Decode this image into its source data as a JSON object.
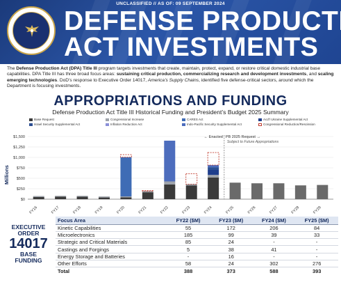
{
  "banner": {
    "classification": "UNCLASSIFIED // AS OF: 09 SEPTEMBER 2024",
    "title_line1": "DEFENSE PRODUCTION",
    "title_line2": "ACT INVESTMENTS",
    "seal_name": "department-of-defense-seal"
  },
  "intro": {
    "p1": "The ",
    "p2": "Defense Production Act (DPA) Title III",
    "p3": " program targets investments that create, maintain, protect, expand, or restore critical domestic industrial base capabilities. DPA Title III has three broad focus areas: ",
    "p4": "sustaining critical production, commercializing research and development investments",
    "p5": ", and ",
    "p6": "scaling emerging technologies",
    "p7": ". DoD’s response to Executive Order 14017, ",
    "p8": "America’s Supply Chains",
    "p9": ", identified five defense-critical sectors, around which the Department is focusing investments."
  },
  "section_title": "APPROPRIATIONS AND FUNDING",
  "colors": {
    "banner": "#1f4592",
    "base": "#3a3a3a",
    "congress": "#9ea3aa",
    "cares": "#3f6cb5",
    "ukraine": "#1e3e8c",
    "israel": "#2c4f93",
    "ira": "#8a8fd8",
    "indo": "#4d6dbd",
    "future": "#6a6a6a",
    "rescission": "#c0392b"
  },
  "chart_data": {
    "type": "bar",
    "title": "Defense Production Act Title III Historical Funding and President’s Budget 2025 Summary",
    "ylabel": "Millions",
    "ylim": [
      0,
      1500
    ],
    "yticks": [
      0,
      250,
      500,
      750,
      1000,
      1250,
      1500
    ],
    "ytick_labels": [
      "$0",
      "$250",
      "$500",
      "$750",
      "$1,000",
      "$1,250",
      "$1,500"
    ],
    "categories": [
      "FY16",
      "FY17",
      "FY18",
      "FY19",
      "FY20",
      "FY21",
      "FY22",
      "FY23",
      "FY24",
      "FY25",
      "FY26",
      "FY27",
      "FY28",
      "FY29"
    ],
    "series": [
      {
        "name": "Base Request",
        "key": "base",
        "values": [
          50,
          60,
          58,
          40,
          45,
          165,
          350,
          330,
          520,
          395,
          380,
          380,
          330,
          340
        ]
      },
      {
        "name": "Congressional Increase",
        "key": "congress",
        "values": [
          25,
          20,
          22,
          25,
          20,
          30,
          75,
          30,
          60,
          0,
          0,
          0,
          0,
          0
        ]
      },
      {
        "name": "CARES Act",
        "key": "cares",
        "values": [
          0,
          0,
          0,
          0,
          940,
          0,
          0,
          0,
          0,
          0,
          0,
          0,
          0,
          0
        ]
      },
      {
        "name": "Acd’l Ukraine Supplemental Act",
        "key": "ukraine",
        "values": [
          0,
          0,
          0,
          0,
          0,
          0,
          0,
          0,
          120,
          0,
          0,
          0,
          0,
          0
        ]
      },
      {
        "name": "Israel Security Supplemental Act",
        "key": "israel",
        "values": [
          0,
          0,
          0,
          0,
          0,
          0,
          0,
          0,
          65,
          0,
          0,
          0,
          0,
          0
        ]
      },
      {
        "name": "Inflation Reduction Act",
        "key": "ira",
        "values": [
          0,
          0,
          0,
          0,
          0,
          0,
          0,
          0,
          0,
          0,
          0,
          0,
          0,
          0
        ]
      },
      {
        "name": "Indo-Pacific Security Supplemental Act",
        "key": "indo",
        "values": [
          0,
          0,
          0,
          0,
          0,
          0,
          975,
          0,
          50,
          0,
          0,
          0,
          0,
          0
        ]
      },
      {
        "name": "Congressional Reduction/Rescission",
        "key": "rescission",
        "values": [
          0,
          0,
          0,
          0,
          60,
          10,
          0,
          250,
          300,
          0,
          0,
          0,
          0,
          0
        ]
      }
    ],
    "annotations": {
      "enacted": "Enacted",
      "request": "PB 2025 Request",
      "future": "Subject to Future Appropriations"
    }
  },
  "eo": {
    "line1": "EXECUTIVE",
    "line2": "ORDER",
    "number": "14017",
    "line3": "BASE",
    "line4": "FUNDING"
  },
  "table": {
    "headers": [
      "Focus Area",
      "FY22 ($M)",
      "FY23 ($M)",
      "FY24 ($M)",
      "FY25 ($M)"
    ],
    "rows": [
      [
        "Kinetic Capabilities",
        "55",
        "172",
        "206",
        "84"
      ],
      [
        "Microelectronics",
        "185",
        "99",
        "39",
        "33"
      ],
      [
        "Strategic and Critical Materials",
        "85",
        "24",
        "-",
        "-"
      ],
      [
        "Castings and Forgings",
        "5",
        "38",
        "41",
        "-"
      ],
      [
        "Energy Storage and Batteries",
        "-",
        "16",
        "-",
        "-"
      ],
      [
        "Other Efforts",
        "58",
        "24",
        "302",
        "276"
      ]
    ],
    "total": [
      "Total",
      "388",
      "373",
      "588",
      "393"
    ]
  }
}
